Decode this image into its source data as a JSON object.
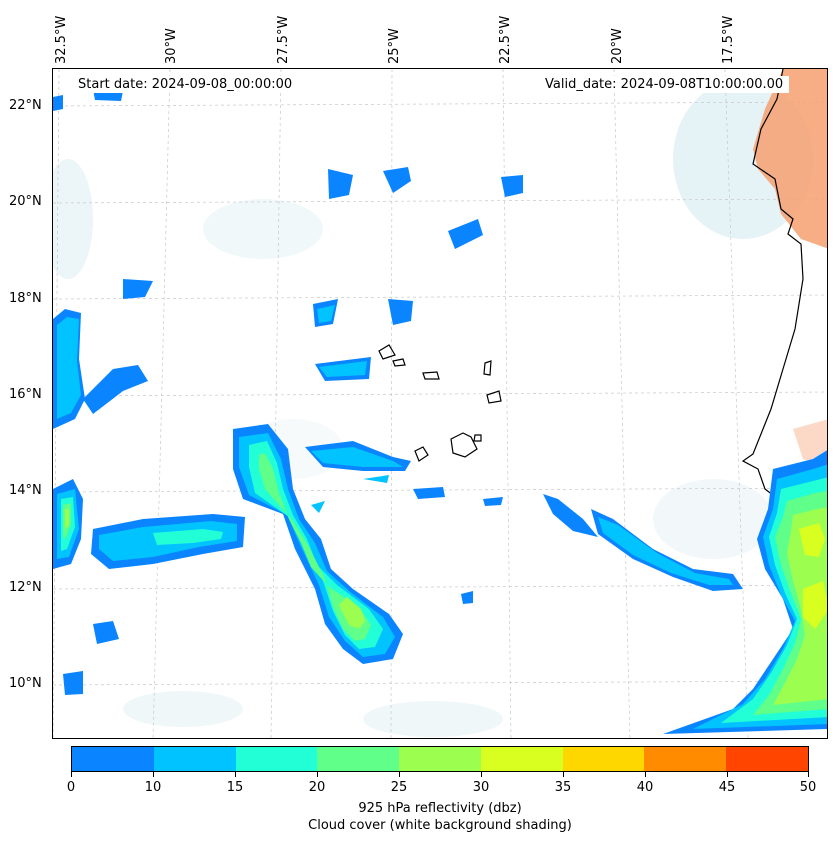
{
  "map": {
    "start_date": "Start date: 2024-09-08_00:00:00",
    "valid_date": "Valid_date: 2024-09-08T10:00:00.00",
    "lon_labels": [
      "32.5°W",
      "30°W",
      "27.5°W",
      "25°W",
      "22.5°W",
      "20°W",
      "17.5°W"
    ],
    "lat_labels": [
      "22°N",
      "20°N",
      "18°N",
      "16°N",
      "14°N",
      "12°N",
      "10°N"
    ],
    "reflectivity_colors": [
      "#0a84ff",
      "#00c3ff",
      "#22ffd6",
      "#5fff8a",
      "#9cff50",
      "#d8ff20",
      "#ffd700",
      "#ff8c00",
      "#ff4500"
    ],
    "land_color": "#f6a070"
  },
  "colorbar": {
    "ticks": [
      "0",
      "10",
      "15",
      "20",
      "25",
      "30",
      "35",
      "40",
      "45",
      "50"
    ],
    "title": "925 hPa reflectivity (dbz)",
    "subtitle": "Cloud cover (white background shading)"
  }
}
